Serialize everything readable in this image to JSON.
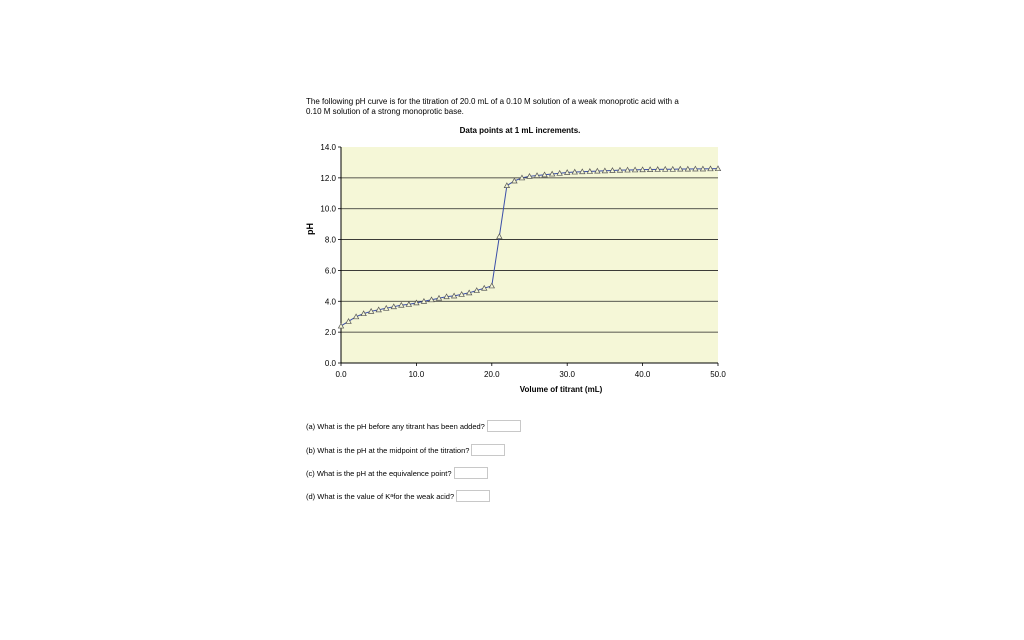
{
  "intro": {
    "line1": "The following pH curve is for the titration of 20.0 mL of a 0.10 M solution of a weak monoprotic acid with a",
    "line2": "0.10 M solution of a strong monoprotic base."
  },
  "chart_data": {
    "type": "line",
    "title": "Data points at 1 mL increments.",
    "xlabel": "Volume of titrant (mL)",
    "ylabel": "pH",
    "xlim": [
      0,
      50
    ],
    "ylim": [
      0,
      14
    ],
    "xticks": [
      "0.0",
      "10.0",
      "20.0",
      "30.0",
      "40.0",
      "50.0"
    ],
    "yticks": [
      "0.0",
      "2.0",
      "4.0",
      "6.0",
      "8.0",
      "10.0",
      "12.0",
      "14.0"
    ],
    "grid": "horizontal",
    "plot_background": "#f5f7d7",
    "line_color": "#3b4fa8",
    "marker": "triangle",
    "x": [
      0,
      1,
      2,
      3,
      4,
      5,
      6,
      7,
      8,
      9,
      10,
      11,
      12,
      13,
      14,
      15,
      16,
      17,
      18,
      19,
      20,
      21,
      22,
      23,
      24,
      25,
      26,
      27,
      28,
      29,
      30,
      31,
      32,
      33,
      34,
      35,
      36,
      37,
      38,
      39,
      40,
      41,
      42,
      43,
      44,
      45,
      46,
      47,
      48,
      49,
      50
    ],
    "y": [
      2.4,
      2.7,
      3.0,
      3.2,
      3.35,
      3.45,
      3.55,
      3.65,
      3.75,
      3.8,
      3.9,
      4.0,
      4.1,
      4.2,
      4.3,
      4.35,
      4.45,
      4.55,
      4.7,
      4.85,
      5.0,
      8.2,
      11.5,
      11.8,
      12.0,
      12.1,
      12.15,
      12.2,
      12.25,
      12.3,
      12.35,
      12.38,
      12.4,
      12.42,
      12.44,
      12.46,
      12.48,
      12.5,
      12.51,
      12.52,
      12.53,
      12.54,
      12.55,
      12.56,
      12.56,
      12.57,
      12.57,
      12.58,
      12.58,
      12.59,
      12.6
    ]
  },
  "questions": [
    {
      "pre": "(a) What is the pH before any titrant has been added?",
      "sub": "",
      "post": ""
    },
    {
      "pre": "(b) What is the pH at the midpoint of the titration?",
      "sub": "",
      "post": ""
    },
    {
      "pre": "(c) What is the pH at the equivalence point?",
      "sub": "",
      "post": ""
    },
    {
      "pre": "(d) What is the value of K",
      "sub": "a",
      "post": " for the weak acid?"
    }
  ]
}
